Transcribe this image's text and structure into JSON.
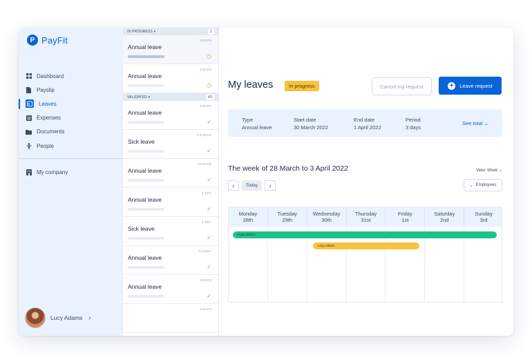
{
  "brand": {
    "name": "PayFit",
    "logo_letter": "P",
    "color": "#0b63d8"
  },
  "sidebar": {
    "items": [
      {
        "label": "Dashboard",
        "icon": "grid-icon"
      },
      {
        "label": "Payslip",
        "icon": "document-icon"
      },
      {
        "label": "Leaves",
        "icon": "calendar-icon",
        "active": true
      },
      {
        "label": "Expenses",
        "icon": "list-icon"
      },
      {
        "label": "Documents",
        "icon": "folder-icon"
      },
      {
        "label": "People",
        "icon": "person-icon"
      }
    ],
    "company": {
      "label": "My company",
      "icon": "building-icon"
    },
    "user": {
      "name": "Lucy Adams"
    }
  },
  "leave_list": {
    "in_progress": {
      "label": "IN PROGRESS",
      "count": "2"
    },
    "validated": {
      "label": "VALIDATED",
      "count": "43"
    },
    "in_progress_items": [
      {
        "title": "Annual leave",
        "days": "3 DAYS",
        "status": "pending"
      },
      {
        "title": "Annual leave",
        "days": "2 DAYS",
        "status": "pending"
      }
    ],
    "validated_items": [
      {
        "title": "Annual leave",
        "days": "4 DAYS",
        "status": "approved"
      },
      {
        "title": "Sick leave",
        "days": "1.5 DAYS",
        "status": "approved"
      },
      {
        "title": "Annual leave",
        "days": "10 DAYS",
        "status": "approved"
      },
      {
        "title": "Annual leave",
        "days": "1 DAY",
        "status": "approved"
      },
      {
        "title": "Sick leave",
        "days": "1 DAY",
        "status": "approved"
      },
      {
        "title": "Annual leave",
        "days": "0,5 DAY",
        "status": "approved"
      },
      {
        "title": "Annual leave",
        "days": "2 DAYS",
        "status": "approved"
      },
      {
        "title": "",
        "days": "3 DAYS",
        "status": ""
      }
    ]
  },
  "main": {
    "title": "My leaves",
    "status_chip": "In progress",
    "cancel_button": "Cancel my request",
    "primary_button": "Leave request",
    "summary": {
      "type_label": "Type",
      "type_value": "Annual leave",
      "start_label": "Start date",
      "start_value": "30 March 2022",
      "end_label": "End date",
      "end_value": "1 April 2022",
      "period_label": "Period",
      "period_value": "3 days",
      "see_total": "See total"
    },
    "week_title": "The week of 28 March to 3 April 2022",
    "view_select": "View: Week",
    "today_button": "Today",
    "employees_button": "Employees",
    "days": [
      {
        "name": "Monday",
        "date": "28th"
      },
      {
        "name": "Tuesday",
        "date": "29th"
      },
      {
        "name": "Wednesday",
        "date": "30th"
      },
      {
        "name": "Thursday",
        "date": "31st"
      },
      {
        "name": "Friday",
        "date": "1st"
      },
      {
        "name": "Saturday",
        "date": "2nd"
      },
      {
        "name": "Sunday",
        "date": "3rd"
      }
    ],
    "events": [
      {
        "name": "Harry Wilson",
        "color": "#1fc28b"
      },
      {
        "name": "Lucy Adams",
        "color": "#f7c33c"
      }
    ]
  }
}
